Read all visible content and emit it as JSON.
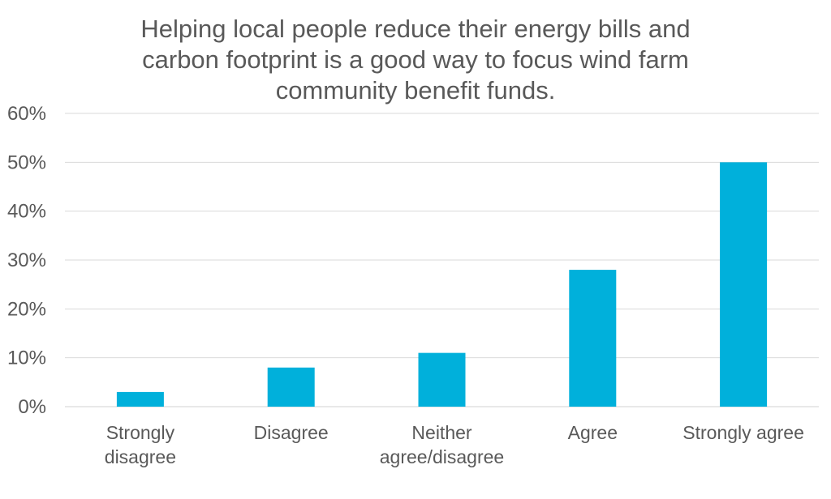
{
  "chart_data": {
    "type": "bar",
    "title_lines": [
      "Helping local people reduce their energy bills and",
      "carbon footprint is a good way to focus wind farm",
      "community benefit funds."
    ],
    "categories": [
      [
        "Strongly",
        "disagree"
      ],
      [
        "Disagree"
      ],
      [
        "Neither",
        "agree/disagree"
      ],
      [
        "Agree"
      ],
      [
        "Strongly agree"
      ]
    ],
    "values": [
      3,
      8,
      11,
      28,
      50
    ],
    "ylim": [
      0,
      60
    ],
    "yticks": [
      0,
      10,
      20,
      30,
      40,
      50,
      60
    ],
    "ytick_labels": [
      "0%",
      "10%",
      "20%",
      "30%",
      "40%",
      "50%",
      "60%"
    ],
    "grid": true,
    "bar_color": "#00b0db",
    "text_color": "#595959",
    "grid_color": "#d9d9d9"
  }
}
